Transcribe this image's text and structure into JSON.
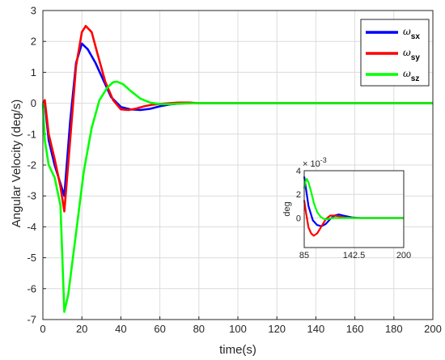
{
  "chart_data": [
    {
      "type": "line",
      "xlabel": "time(s)",
      "ylabel": "Angular Velocity (deg/s)",
      "xlim": [
        0,
        200
      ],
      "ylim": [
        -7,
        3
      ],
      "xticks": [
        "0",
        "20",
        "40",
        "60",
        "80",
        "100",
        "120",
        "140",
        "160",
        "180",
        "200"
      ],
      "yticks": [
        "-7",
        "-6",
        "-5",
        "-4",
        "-3",
        "-2",
        "-1",
        "0",
        "1",
        "2",
        "3"
      ],
      "grid": true,
      "legend": {
        "position": "top-right",
        "entries": [
          {
            "symbol": "ω",
            "sub": "sx"
          },
          {
            "symbol": "ω",
            "sub": "sy"
          },
          {
            "symbol": "ω",
            "sub": "sz"
          }
        ]
      },
      "series": [
        {
          "name": "ωsx",
          "color": "#0000ff",
          "x": [
            0,
            1,
            3,
            6,
            9,
            11,
            14,
            17,
            20,
            23,
            27,
            31,
            35,
            40,
            45,
            50,
            55,
            60,
            65,
            70,
            75,
            80,
            100,
            150,
            200
          ],
          "y": [
            0,
            0,
            -1.2,
            -2.0,
            -2.6,
            -3.0,
            -0.6,
            1.3,
            1.93,
            1.75,
            1.3,
            0.75,
            0.2,
            -0.12,
            -0.2,
            -0.22,
            -0.18,
            -0.1,
            -0.04,
            -0.01,
            0,
            0,
            0,
            0,
            0
          ]
        },
        {
          "name": "ωsy",
          "color": "#ff0000",
          "x": [
            0,
            1,
            3,
            6,
            9,
            11,
            14,
            17,
            20,
            22,
            25,
            28,
            32,
            36,
            40,
            44,
            48,
            52,
            56,
            60,
            65,
            70,
            75,
            80,
            100,
            150,
            200
          ],
          "y": [
            0,
            0.1,
            -1.0,
            -1.8,
            -2.7,
            -3.5,
            -1.2,
            1.2,
            2.3,
            2.5,
            2.3,
            1.6,
            0.7,
            0.1,
            -0.2,
            -0.22,
            -0.17,
            -0.1,
            -0.05,
            -0.02,
            0,
            0.02,
            0.02,
            0,
            0,
            0,
            0
          ]
        },
        {
          "name": "ωsz",
          "color": "#00ff00",
          "x": [
            0,
            1,
            3,
            6,
            9,
            11,
            13,
            17,
            21,
            25,
            29,
            33,
            36,
            38,
            41,
            45,
            50,
            55,
            60,
            65,
            70,
            80,
            100,
            150,
            200
          ],
          "y": [
            0,
            -1.2,
            -2.0,
            -2.4,
            -3.3,
            -6.75,
            -6.2,
            -4.2,
            -2.2,
            -0.8,
            0.1,
            0.5,
            0.68,
            0.7,
            0.62,
            0.4,
            0.15,
            0.02,
            -0.03,
            -0.03,
            -0.01,
            0,
            0,
            0,
            0
          ]
        }
      ]
    },
    {
      "type": "line",
      "inset": true,
      "ylabel": "deg",
      "xlim": [
        85,
        200
      ],
      "ylim": [
        -0.0025,
        0.004
      ],
      "xticks": [
        "85",
        "142.5",
        "200"
      ],
      "yticks": [
        "0",
        "2",
        "4"
      ],
      "ytick_values": [
        0,
        0.002,
        0.004
      ],
      "exponent_label": "× 10",
      "exponent_power": "-3",
      "grid": true,
      "series": [
        {
          "color": "#0000ff",
          "x": [
            85,
            87,
            90,
            95,
            100,
            105,
            110,
            115,
            120,
            125,
            130,
            140,
            150,
            160,
            200
          ],
          "y": [
            0.0035,
            0.0025,
            0.001,
            -0.0002,
            -0.0006,
            -0.0007,
            -0.0005,
            -0.0001,
            0.0002,
            0.0003,
            0.0002,
            5e-05,
            0,
            0,
            0
          ]
        },
        {
          "color": "#ff0000",
          "x": [
            85,
            87,
            90,
            93,
            96,
            100,
            105,
            110,
            115,
            120,
            125,
            130,
            140,
            150,
            160,
            200
          ],
          "y": [
            0.0015,
            0.0005,
            -0.0008,
            -0.0013,
            -0.0015,
            -0.0013,
            -0.0007,
            -0.0001,
            0.0002,
            0.0002,
            0.00015,
            5e-05,
            0,
            0,
            0,
            0
          ]
        },
        {
          "color": "#00ff00",
          "x": [
            85,
            86,
            88,
            90,
            93,
            96,
            100,
            104,
            108,
            112,
            118,
            125,
            135,
            150,
            200
          ],
          "y": [
            0.0025,
            0.003,
            0.0033,
            0.003,
            0.0022,
            0.0013,
            0.0005,
            0.0001,
            -0.0001,
            -0.0001,
            0,
            0,
            0,
            0,
            0
          ]
        }
      ]
    }
  ]
}
